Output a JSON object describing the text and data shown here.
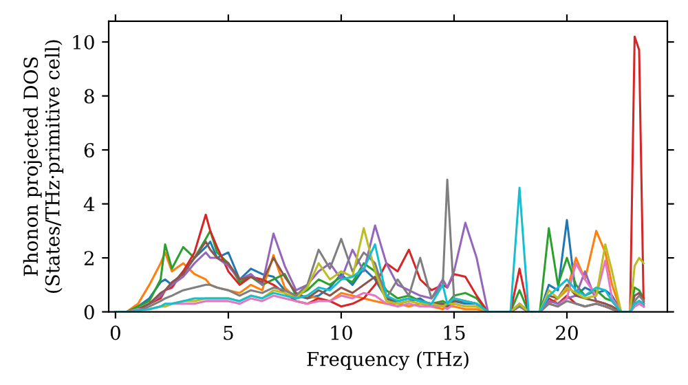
{
  "chart_data": {
    "type": "line",
    "xlabel": "Frequency (THz)",
    "ylabel": "Phonon projected DOS\n(States/THz·primitive cell)",
    "xlim": [
      -0.3,
      24.45
    ],
    "ylim": [
      0,
      10.77
    ],
    "xticks": [
      0,
      5,
      10,
      15,
      20
    ],
    "yticks": [
      0,
      2,
      4,
      6,
      8,
      10
    ],
    "grid": false,
    "x": [
      0,
      0.5,
      1,
      1.5,
      2,
      2.2,
      2.5,
      3,
      3.5,
      4,
      4.2,
      4.5,
      5,
      5.5,
      6,
      6.5,
      7,
      7.5,
      8,
      8.5,
      9,
      9.5,
      10,
      10.5,
      11,
      11.5,
      12,
      12.5,
      13,
      13.5,
      14,
      14.5,
      14.7,
      15,
      15.5,
      16,
      16.5,
      17,
      17.5,
      17.9,
      18.3,
      18.8,
      19.2,
      19.6,
      20,
      20.4,
      20.8,
      21.3,
      21.7,
      22,
      22.4,
      22.8,
      23,
      23.2,
      23.4
    ],
    "series": [
      {
        "color": "#1f77b4",
        "values": [
          0,
          0,
          0.2,
          0.5,
          1.1,
          1.2,
          1.0,
          1.5,
          2.0,
          2.4,
          2.6,
          2.0,
          2.2,
          1.2,
          1.6,
          1.4,
          1.3,
          0.8,
          0.6,
          0.5,
          0.6,
          0.9,
          1.4,
          1.0,
          1.6,
          1.2,
          0.5,
          0.3,
          0.4,
          0.5,
          0.2,
          0.3,
          0.2,
          0.4,
          0.3,
          0.3,
          0,
          0,
          0,
          0.3,
          0,
          0,
          1.0,
          0.8,
          3.4,
          0.6,
          0.9,
          0.7,
          0.8,
          0.6,
          0,
          0,
          0.3,
          0.4,
          0.3
        ]
      },
      {
        "color": "#ff7f0e",
        "values": [
          0,
          0,
          0.3,
          1.0,
          1.8,
          2.2,
          1.5,
          1.8,
          1.4,
          1.2,
          1.0,
          0.9,
          0.8,
          0.7,
          1.0,
          0.8,
          2.1,
          0.9,
          0.5,
          0.6,
          0.5,
          0.4,
          0.7,
          0.6,
          0.5,
          0.4,
          0.3,
          0.3,
          0.2,
          0.3,
          0.2,
          0.1,
          0.2,
          0.2,
          0.1,
          0.1,
          0,
          0,
          0,
          0.2,
          0,
          0,
          0.3,
          0.5,
          0.8,
          2.0,
          1.2,
          3.0,
          2.2,
          1.0,
          0,
          0,
          null,
          null,
          null
        ]
      },
      {
        "color": "#2ca02c",
        "values": [
          0,
          0,
          0.2,
          0.4,
          1.2,
          2.5,
          1.6,
          2.4,
          2.0,
          2.7,
          3.0,
          2.2,
          1.8,
          1.1,
          1.3,
          1.0,
          1.2,
          1.4,
          0.6,
          0.8,
          1.2,
          1.0,
          1.3,
          1.1,
          1.8,
          1.5,
          0.8,
          0.5,
          0.6,
          0.4,
          0.3,
          0.4,
          0.3,
          0.6,
          0.7,
          0.5,
          0,
          0,
          0,
          0.8,
          0,
          0,
          3.1,
          1.0,
          2.0,
          1.0,
          0.6,
          0.8,
          0.5,
          0.4,
          0,
          0,
          0.9,
          0.8,
          0.5
        ]
      },
      {
        "color": "#d62728",
        "values": [
          null,
          null,
          0.1,
          0.3,
          0.5,
          0.8,
          0.9,
          1.5,
          2.2,
          3.6,
          3.0,
          2.4,
          1.5,
          1.0,
          1.3,
          1.2,
          1.0,
          0.7,
          0.4,
          0.3,
          0.5,
          0.4,
          0.2,
          0.3,
          0.5,
          1.0,
          1.8,
          1.5,
          2.3,
          1.2,
          0.8,
          1.0,
          0.9,
          1.4,
          1.3,
          0.6,
          0,
          0,
          0,
          1.6,
          0,
          0,
          0.5,
          0.3,
          0.6,
          0.3,
          0.2,
          0.3,
          0.2,
          0.1,
          0,
          0,
          10.2,
          9.7,
          0.2
        ]
      },
      {
        "color": "#9467bd",
        "values": [
          0,
          0,
          0.1,
          0.3,
          0.6,
          0.8,
          1.0,
          1.3,
          1.8,
          2.2,
          2.0,
          2.0,
          1.7,
          1.2,
          1.4,
          1.0,
          2.9,
          1.7,
          0.8,
          1.0,
          1.5,
          1.8,
          1.2,
          2.3,
          1.5,
          3.2,
          1.8,
          1.0,
          0.8,
          0.6,
          0.5,
          1.2,
          0.9,
          1.5,
          3.3,
          2.0,
          0,
          0,
          0,
          0.2,
          0,
          0,
          0.4,
          0.3,
          0.5,
          0.6,
          1.5,
          0.4,
          0.3,
          0.2,
          0,
          0,
          0.2,
          0.3,
          0.2
        ]
      },
      {
        "color": "#8c564b",
        "values": [
          0,
          0,
          0.1,
          0.3,
          0.7,
          0.8,
          1.1,
          1.4,
          2.0,
          2.6,
          2.3,
          2.0,
          1.8,
          1.2,
          1.3,
          1.1,
          2.0,
          1.3,
          0.7,
          0.5,
          0.8,
          0.6,
          0.9,
          0.7,
          1.0,
          1.3,
          0.5,
          0.4,
          0.5,
          0.4,
          0.3,
          0.3,
          0.2,
          0.4,
          0.4,
          0.3,
          0,
          0,
          0,
          0.3,
          0,
          0,
          0.6,
          0.5,
          1.0,
          0.6,
          0.5,
          0.4,
          0.3,
          0.2,
          0,
          0,
          0.6,
          0.7,
          0.4
        ]
      },
      {
        "color": "#e377c2",
        "values": [
          0,
          0,
          0.1,
          0.1,
          0.2,
          0.2,
          0.3,
          0.3,
          0.3,
          0.4,
          0.4,
          0.4,
          0.4,
          0.3,
          0.5,
          0.4,
          0.6,
          0.5,
          0.4,
          0.3,
          0.4,
          0.4,
          0.6,
          0.5,
          0.7,
          0.6,
          0.3,
          0.2,
          0.3,
          0.2,
          0.2,
          0.2,
          0.1,
          0.3,
          0.2,
          0.2,
          0,
          0,
          0,
          0.2,
          0,
          0,
          0.3,
          0.2,
          0.5,
          1.8,
          1.2,
          0.6,
          1.9,
          0.5,
          0,
          0,
          0.2,
          0.3,
          0.2
        ]
      },
      {
        "color": "#7f7f7f",
        "values": [
          0,
          0,
          0.05,
          0.2,
          0.4,
          0.5,
          0.6,
          0.8,
          0.9,
          1.0,
          1.0,
          0.9,
          0.8,
          0.6,
          0.8,
          0.7,
          0.9,
          0.8,
          0.6,
          1.0,
          2.3,
          1.6,
          2.7,
          1.5,
          2.2,
          1.8,
          0.5,
          1.2,
          0.6,
          2.0,
          0.5,
          1.0,
          4.9,
          0.5,
          0.4,
          0.3,
          0,
          0,
          0,
          0.2,
          0,
          0,
          0.3,
          0.2,
          0.4,
          0.3,
          0.2,
          0.3,
          0.2,
          0.1,
          0,
          0,
          0.4,
          0.6,
          0.4
        ]
      },
      {
        "color": "#bcbd22",
        "values": [
          null,
          null,
          null,
          0.1,
          0.2,
          0.2,
          0.3,
          0.4,
          0.4,
          0.5,
          0.5,
          0.5,
          0.5,
          0.4,
          0.6,
          0.5,
          0.8,
          0.7,
          0.5,
          0.9,
          1.8,
          1.2,
          1.5,
          1.3,
          3.1,
          1.5,
          0.4,
          0.3,
          0.4,
          0.3,
          0.3,
          0.2,
          0.3,
          0.3,
          0.2,
          0.2,
          0,
          0,
          0,
          0.3,
          0,
          0,
          0.8,
          0.5,
          0.9,
          0.7,
          0.5,
          0.6,
          2.5,
          1.5,
          0,
          0,
          1.7,
          2.0,
          1.8
        ]
      },
      {
        "color": "#17becf",
        "values": [
          0,
          0,
          0.05,
          0.1,
          0.2,
          0.3,
          0.3,
          0.4,
          0.5,
          0.5,
          0.5,
          0.5,
          0.5,
          0.4,
          0.6,
          0.5,
          0.7,
          0.6,
          0.5,
          0.6,
          0.9,
          0.8,
          1.2,
          1.3,
          1.6,
          2.5,
          0.6,
          0.4,
          0.5,
          0.4,
          0.3,
          1.0,
          0.3,
          0.5,
          0.4,
          0.3,
          0,
          0,
          0,
          4.6,
          0,
          0,
          0.6,
          0.9,
          1.2,
          0.8,
          0.6,
          0.9,
          0.8,
          0.4,
          0,
          0,
          0.3,
          0.4,
          0.3
        ]
      }
    ]
  }
}
